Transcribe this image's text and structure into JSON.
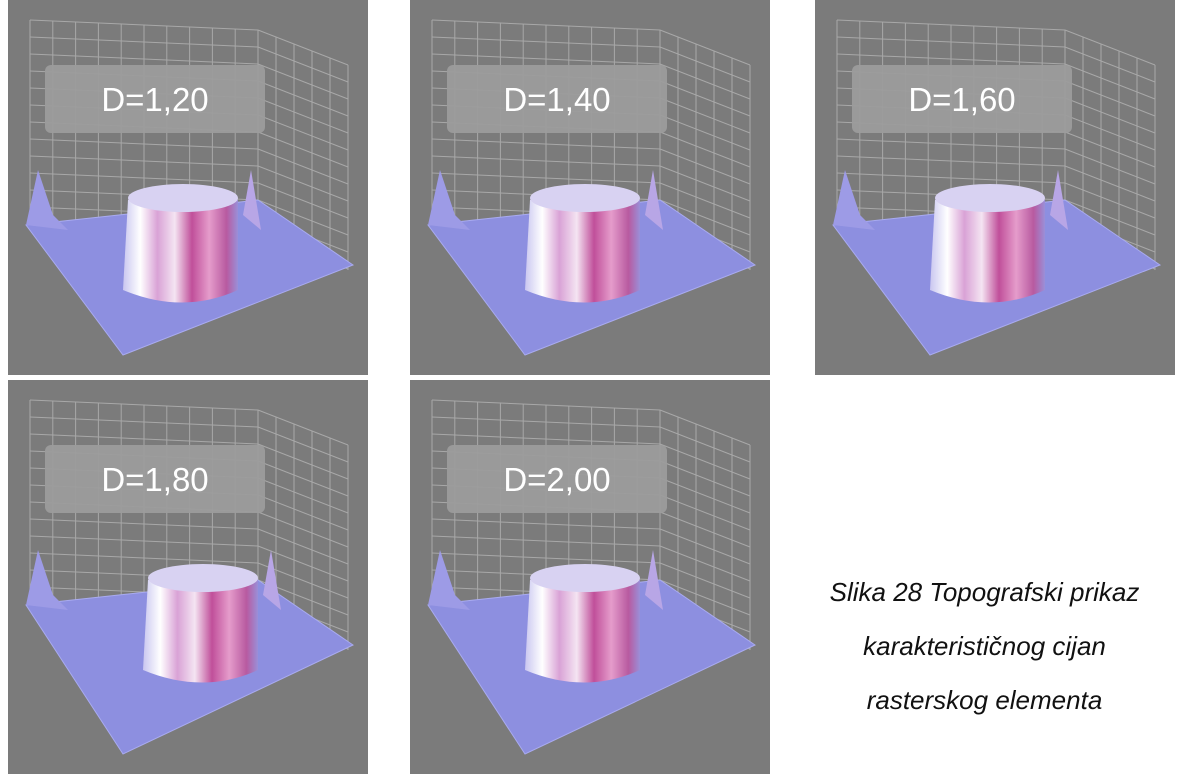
{
  "figure": {
    "panels": [
      {
        "label": "D=1,20"
      },
      {
        "label": "D=1,40"
      },
      {
        "label": "D=1,60"
      },
      {
        "label": "D=1,80"
      },
      {
        "label": "D=2,00"
      }
    ],
    "caption": [
      "Slika 28 Topografski prikaz",
      "karakterističnog cijan",
      "rasterskog elementa"
    ]
  }
}
